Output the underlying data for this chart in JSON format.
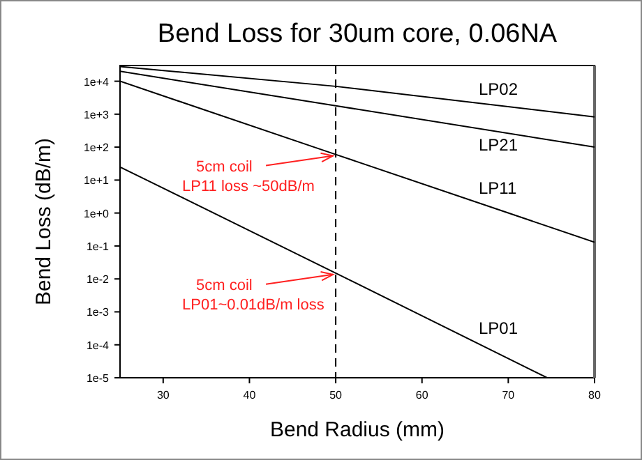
{
  "chart_data": {
    "type": "line",
    "title": "Bend Loss for 30um core, 0.06NA",
    "xlabel": "Bend Radius (mm)",
    "ylabel": "Bend Loss (dB/m)",
    "log": "y",
    "xlim": [
      25,
      80
    ],
    "xticks": [
      30,
      40,
      50,
      60,
      70,
      80
    ],
    "ylim": [
      1e-05,
      30000
    ],
    "yticks": [
      {
        "value": 1e-05,
        "label": "1e-5"
      },
      {
        "value": 0.0001,
        "label": "1e-4"
      },
      {
        "value": 0.001,
        "label": "1e-3"
      },
      {
        "value": 0.01,
        "label": "1e-2"
      },
      {
        "value": 0.1,
        "label": "1e-1"
      },
      {
        "value": 1,
        "label": "1e+0"
      },
      {
        "value": 10,
        "label": "1e+1"
      },
      {
        "value": 100,
        "label": "1e+2"
      },
      {
        "value": 1000,
        "label": "1e+3"
      },
      {
        "value": 10000,
        "label": "1e+4"
      }
    ],
    "series": [
      {
        "name": "LP02",
        "color": "#000000",
        "x": [
          25,
          50,
          80
        ],
        "values": [
          28000,
          7000,
          830
        ]
      },
      {
        "name": "LP21",
        "color": "#000000",
        "x": [
          25,
          50,
          80
        ],
        "values": [
          20000,
          1800,
          100
        ]
      },
      {
        "name": "LP11",
        "color": "#000000",
        "x": [
          25,
          50,
          80
        ],
        "values": [
          10000,
          60,
          0.13
        ]
      },
      {
        "name": "LP01",
        "color": "#000000",
        "x": [
          25,
          50,
          74.5
        ],
        "values": [
          25,
          0.015,
          1e-05
        ]
      }
    ],
    "ref_lines": [
      {
        "axis": "x",
        "value": 50,
        "line_style": "dashed",
        "color": "#000000"
      }
    ],
    "annotations": [
      {
        "text": "5cm coil\nLP11 loss ~50dB/m",
        "x": 50,
        "y": 60
      },
      {
        "text": "5cm coil\nLP01~0.01dB/m loss",
        "x": 50,
        "y": 0.015
      }
    ],
    "grid": false,
    "marker": "none",
    "line_style": "solid"
  }
}
